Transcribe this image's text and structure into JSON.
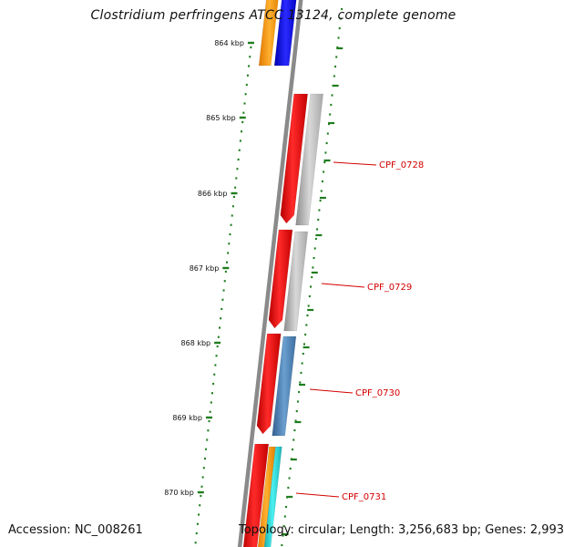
{
  "title": "Clostridium perfringens ATCC 13124, complete genome",
  "footer": {
    "accession": "Accession: NC_008261",
    "summary": "Topology: circular; Length: 3,256,683 bp; Genes: 2,993"
  },
  "scale": {
    "ticks": [
      "864 kbp",
      "865 kbp",
      "866 kbp",
      "867 kbp",
      "868 kbp",
      "869 kbp",
      "870 kbp"
    ]
  },
  "gene_labels": [
    {
      "id": "cpf0728",
      "text": "CPF_0728"
    },
    {
      "id": "cpf0729",
      "text": "CPF_0729"
    },
    {
      "id": "cpf0730",
      "text": "CPF_0730"
    },
    {
      "id": "cpf0731",
      "text": "CPF_0731"
    }
  ],
  "colors": {
    "backbone": "#8a8a8a",
    "cds": "#ee1111",
    "label": "#d40000",
    "tick": "#1e7d1e",
    "gray_track": "#b8b8b8",
    "blue_track": "#4e82b8",
    "cyan_track": "#22cccc",
    "orange_track": "#ff9900",
    "dark_blue_track": "#0000dd"
  }
}
